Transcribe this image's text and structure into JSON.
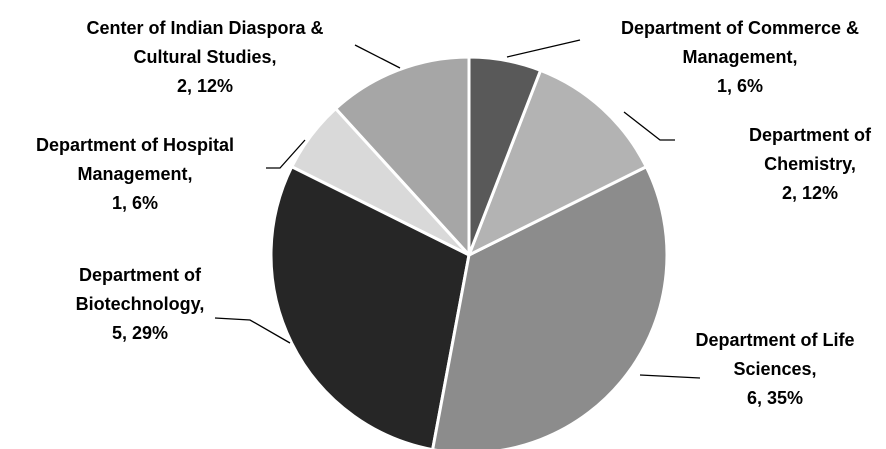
{
  "chart_data": {
    "type": "pie",
    "categories": [
      "Department of Commerce & Management,",
      "Department of Chemistry,",
      "Department of Life Sciences,",
      "Department of Biotechnology,",
      "Department of Hospital Management,",
      "Center of Indian Diaspora & Cultural Studies,"
    ],
    "values": [
      1,
      2,
      6,
      5,
      1,
      2
    ],
    "value_labels": [
      "1, 6%",
      "2, 12%",
      "6, 35%",
      "5, 29%",
      "1, 6%",
      "2, 12%"
    ],
    "colors": [
      "#595959",
      "#b3b3b3",
      "#8c8c8c",
      "#262626",
      "#d9d9d9",
      "#a6a6a6"
    ]
  }
}
